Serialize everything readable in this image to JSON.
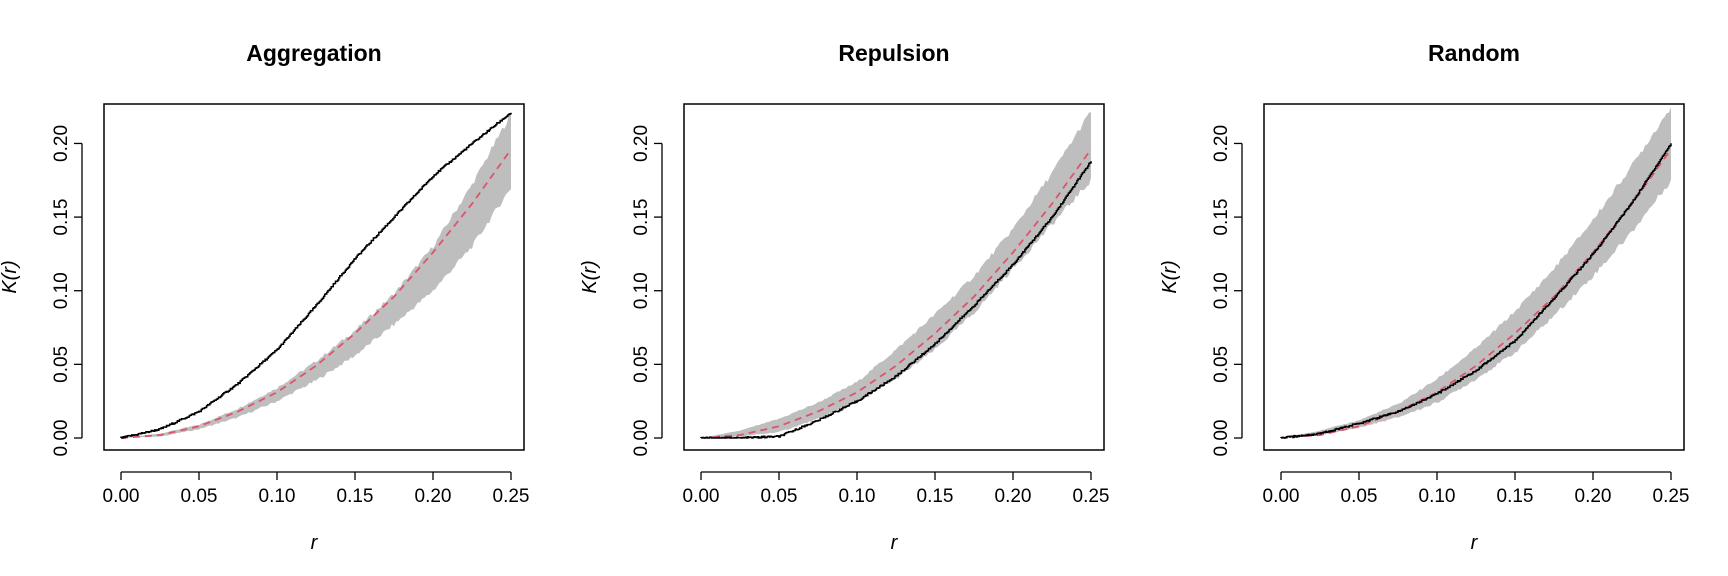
{
  "chart_data": [
    {
      "type": "line",
      "title": "Aggregation",
      "xlabel": "r",
      "ylabel": "K(r)",
      "xlim": [
        0,
        0.25
      ],
      "ylim": [
        0,
        0.22
      ],
      "x_ticks": [
        "0.00",
        "0.05",
        "0.10",
        "0.15",
        "0.20",
        "0.25"
      ],
      "y_ticks": [
        "0.00",
        "0.05",
        "0.10",
        "0.15",
        "0.20"
      ],
      "grid": false,
      "x": [
        0,
        0.025,
        0.05,
        0.075,
        0.1,
        0.125,
        0.15,
        0.175,
        0.2,
        0.225,
        0.25
      ],
      "series": [
        {
          "kind": "envelope",
          "color": "#bebebe",
          "lower": [
            0,
            0.001,
            0.006,
            0.014,
            0.025,
            0.039,
            0.056,
            0.077,
            0.1,
            0.13,
            0.17
          ],
          "upper": [
            0,
            0.003,
            0.009,
            0.02,
            0.034,
            0.052,
            0.073,
            0.098,
            0.13,
            0.172,
            0.22
          ]
        },
        {
          "kind": "theoretical",
          "color": "#df536b",
          "dash": true,
          "values": [
            0,
            0.002,
            0.008,
            0.018,
            0.031,
            0.049,
            0.071,
            0.096,
            0.126,
            0.159,
            0.196
          ]
        },
        {
          "kind": "observed",
          "color": "#000000",
          "values": [
            0,
            0.006,
            0.018,
            0.037,
            0.06,
            0.09,
            0.122,
            0.15,
            0.178,
            0.2,
            0.221
          ]
        }
      ]
    },
    {
      "type": "line",
      "title": "Repulsion",
      "xlabel": "r",
      "ylabel": "K(r)",
      "xlim": [
        0,
        0.25
      ],
      "ylim": [
        0,
        0.22
      ],
      "x_ticks": [
        "0.00",
        "0.05",
        "0.10",
        "0.15",
        "0.20",
        "0.25"
      ],
      "y_ticks": [
        "0.00",
        "0.05",
        "0.10",
        "0.15",
        "0.20"
      ],
      "grid": false,
      "x": [
        0,
        0.025,
        0.05,
        0.075,
        0.1,
        0.125,
        0.15,
        0.175,
        0.2,
        0.225,
        0.25
      ],
      "series": [
        {
          "kind": "envelope",
          "color": "#bebebe",
          "lower": [
            0,
            0.001,
            0.004,
            0.013,
            0.025,
            0.04,
            0.06,
            0.085,
            0.115,
            0.145,
            0.175
          ],
          "upper": [
            0,
            0.005,
            0.013,
            0.024,
            0.038,
            0.06,
            0.084,
            0.11,
            0.142,
            0.18,
            0.222
          ]
        },
        {
          "kind": "theoretical",
          "color": "#df536b",
          "dash": true,
          "values": [
            0,
            0.002,
            0.008,
            0.018,
            0.031,
            0.049,
            0.071,
            0.096,
            0.126,
            0.159,
            0.196
          ]
        },
        {
          "kind": "observed",
          "color": "#000000",
          "values": [
            0,
            0,
            0.001,
            0.012,
            0.025,
            0.042,
            0.064,
            0.09,
            0.118,
            0.15,
            0.188
          ]
        }
      ]
    },
    {
      "type": "line",
      "title": "Random",
      "xlabel": "r",
      "ylabel": "K(r)",
      "xlim": [
        0,
        0.25
      ],
      "ylim": [
        0,
        0.22
      ],
      "x_ticks": [
        "0.00",
        "0.05",
        "0.10",
        "0.15",
        "0.20",
        "0.25"
      ],
      "y_ticks": [
        "0.00",
        "0.05",
        "0.10",
        "0.15",
        "0.20"
      ],
      "grid": false,
      "x": [
        0,
        0.025,
        0.05,
        0.075,
        0.1,
        0.125,
        0.15,
        0.175,
        0.2,
        0.225,
        0.25
      ],
      "series": [
        {
          "kind": "envelope",
          "color": "#bebebe",
          "lower": [
            0,
            0.002,
            0.007,
            0.014,
            0.024,
            0.04,
            0.058,
            0.083,
            0.11,
            0.14,
            0.175
          ],
          "upper": [
            0,
            0.005,
            0.012,
            0.023,
            0.04,
            0.061,
            0.086,
            0.115,
            0.148,
            0.185,
            0.225
          ]
        },
        {
          "kind": "theoretical",
          "color": "#df536b",
          "dash": true,
          "values": [
            0,
            0.002,
            0.008,
            0.018,
            0.031,
            0.049,
            0.071,
            0.096,
            0.126,
            0.159,
            0.196
          ]
        },
        {
          "kind": "observed",
          "color": "#000000",
          "values": [
            0,
            0.003,
            0.01,
            0.018,
            0.03,
            0.046,
            0.066,
            0.095,
            0.125,
            0.16,
            0.2
          ]
        }
      ]
    }
  ]
}
